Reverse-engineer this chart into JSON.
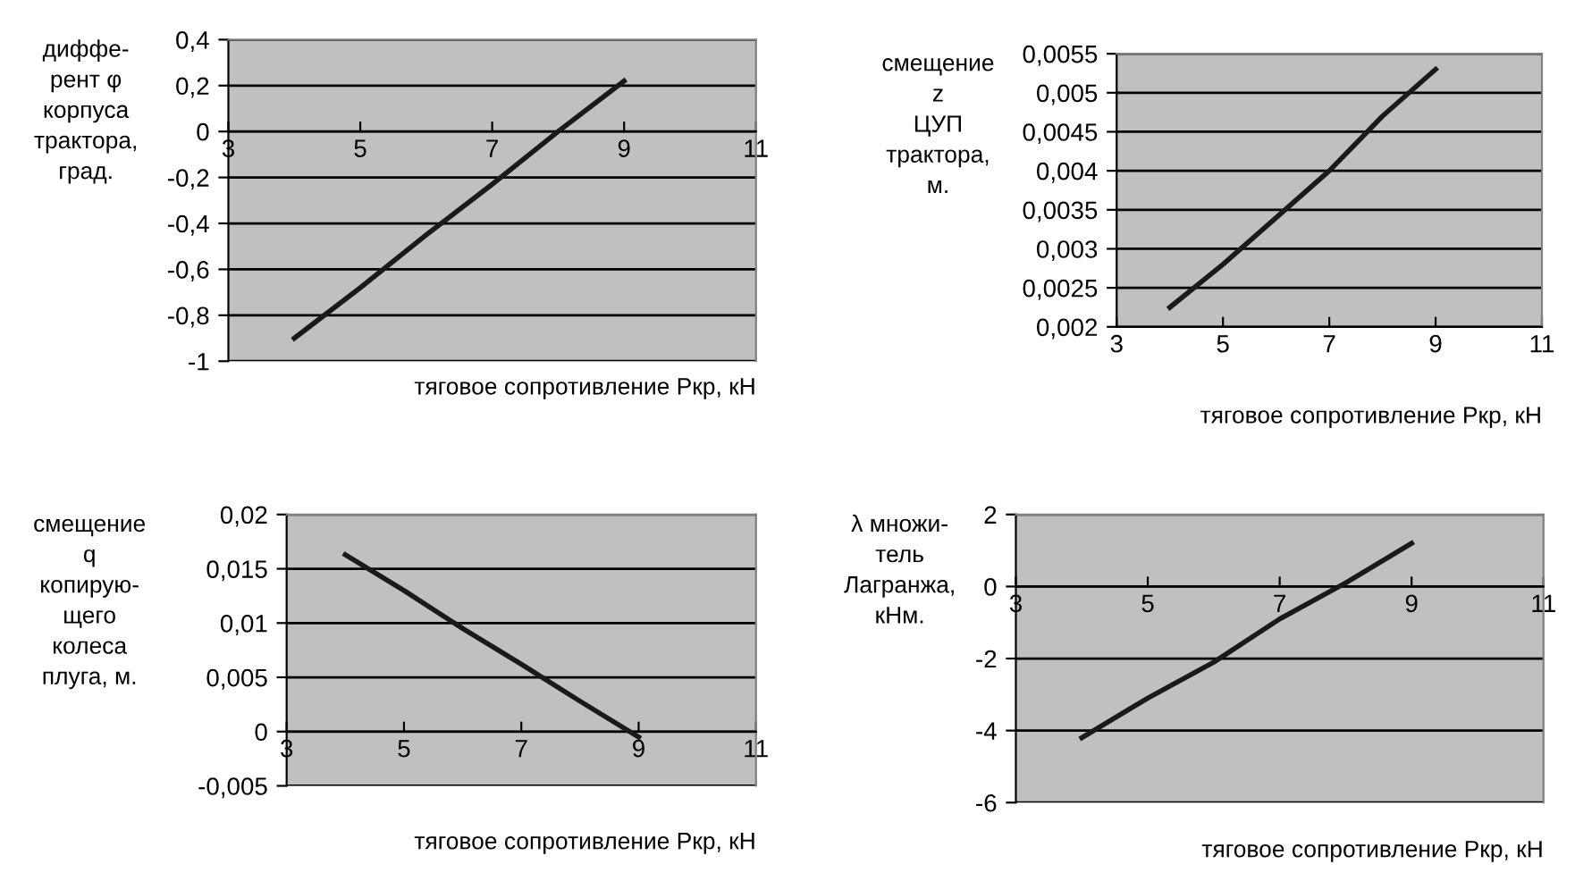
{
  "chart_data": [
    {
      "type": "line",
      "ylabel": "диффе-\nрент φ\nкорпуса\nтрактора,\nград.",
      "xlabel": "тяговое сопротивление Ркр, кН",
      "x": [
        4,
        5,
        6,
        7,
        8,
        9
      ],
      "series": [
        {
          "color": "#1a1a1a",
          "values": [
            -0.9,
            -0.68,
            -0.45,
            -0.23,
            0.0,
            0.22
          ]
        }
      ],
      "xlim": [
        3,
        11
      ],
      "xticks": [
        3,
        5,
        7,
        9,
        11
      ],
      "ylim": [
        -1,
        0.4
      ],
      "yticks": [
        {
          "value": -1,
          "label": "-1"
        },
        {
          "value": -0.8,
          "label": "-0,8"
        },
        {
          "value": -0.6,
          "label": "-0,6"
        },
        {
          "value": -0.4,
          "label": "-0,4"
        },
        {
          "value": -0.2,
          "label": "-0,2"
        },
        {
          "value": 0,
          "label": "0"
        },
        {
          "value": 0.2,
          "label": "0,2"
        },
        {
          "value": 0.4,
          "label": "0,4"
        }
      ],
      "grid": "y",
      "marker": "none",
      "line_style": "solid"
    },
    {
      "type": "line",
      "ylabel": "смещение\nz\nЦУП\nтрактора,\nм.",
      "xlabel": "тяговое сопротивление Ркр, кН",
      "x": [
        4,
        5,
        6,
        7,
        8,
        9
      ],
      "series": [
        {
          "color": "#1a1a1a",
          "values": [
            0.00225,
            0.0028,
            0.0034,
            0.004,
            0.0047,
            0.0053
          ]
        }
      ],
      "xlim": [
        3,
        11
      ],
      "xticks": [
        3,
        5,
        7,
        9,
        11
      ],
      "ylim": [
        0.002,
        0.0055
      ],
      "yticks": [
        {
          "value": 0.002,
          "label": "0,002"
        },
        {
          "value": 0.0025,
          "label": "0,0025"
        },
        {
          "value": 0.003,
          "label": "0,003"
        },
        {
          "value": 0.0035,
          "label": "0,0035"
        },
        {
          "value": 0.004,
          "label": "0,004"
        },
        {
          "value": 0.0045,
          "label": "0,0045"
        },
        {
          "value": 0.005,
          "label": "0,005"
        },
        {
          "value": 0.0055,
          "label": "0,0055"
        }
      ],
      "grid": "y",
      "marker": "none",
      "line_style": "solid"
    },
    {
      "type": "line",
      "ylabel": "смещение\nq\nкопирую-\nщего\nколеса\nплуга, м.",
      "xlabel": "тяговое сопротивление Ркр, кН",
      "x": [
        4,
        5,
        6,
        7,
        8,
        9
      ],
      "series": [
        {
          "color": "#1a1a1a",
          "values": [
            0.0163,
            0.013,
            0.0095,
            0.0062,
            0.0028,
            -0.0005
          ]
        }
      ],
      "xlim": [
        3,
        11
      ],
      "xticks": [
        3,
        5,
        7,
        9,
        11
      ],
      "ylim": [
        -0.005,
        0.02
      ],
      "yticks": [
        {
          "value": -0.005,
          "label": "-0,005"
        },
        {
          "value": 0,
          "label": "0"
        },
        {
          "value": 0.005,
          "label": "0,005"
        },
        {
          "value": 0.01,
          "label": "0,01"
        },
        {
          "value": 0.015,
          "label": "0,015"
        },
        {
          "value": 0.02,
          "label": "0,02"
        }
      ],
      "grid": "y",
      "marker": "none",
      "line_style": "solid"
    },
    {
      "type": "line",
      "ylabel": "λ множи-\nтель\nЛагранжа,\nкНм.",
      "xlabel": "тяговое сопротивление Ркр, кН",
      "x": [
        4,
        5,
        6,
        7,
        8,
        9
      ],
      "series": [
        {
          "color": "#1a1a1a",
          "values": [
            -4.2,
            -3.1,
            -2.1,
            -0.9,
            0.1,
            1.2
          ]
        }
      ],
      "xlim": [
        3,
        11
      ],
      "xticks": [
        3,
        5,
        7,
        9,
        11
      ],
      "ylim": [
        -6,
        2
      ],
      "yticks": [
        -6,
        -4,
        -2,
        0,
        2
      ],
      "grid": "y",
      "marker": "none",
      "line_style": "solid"
    }
  ]
}
